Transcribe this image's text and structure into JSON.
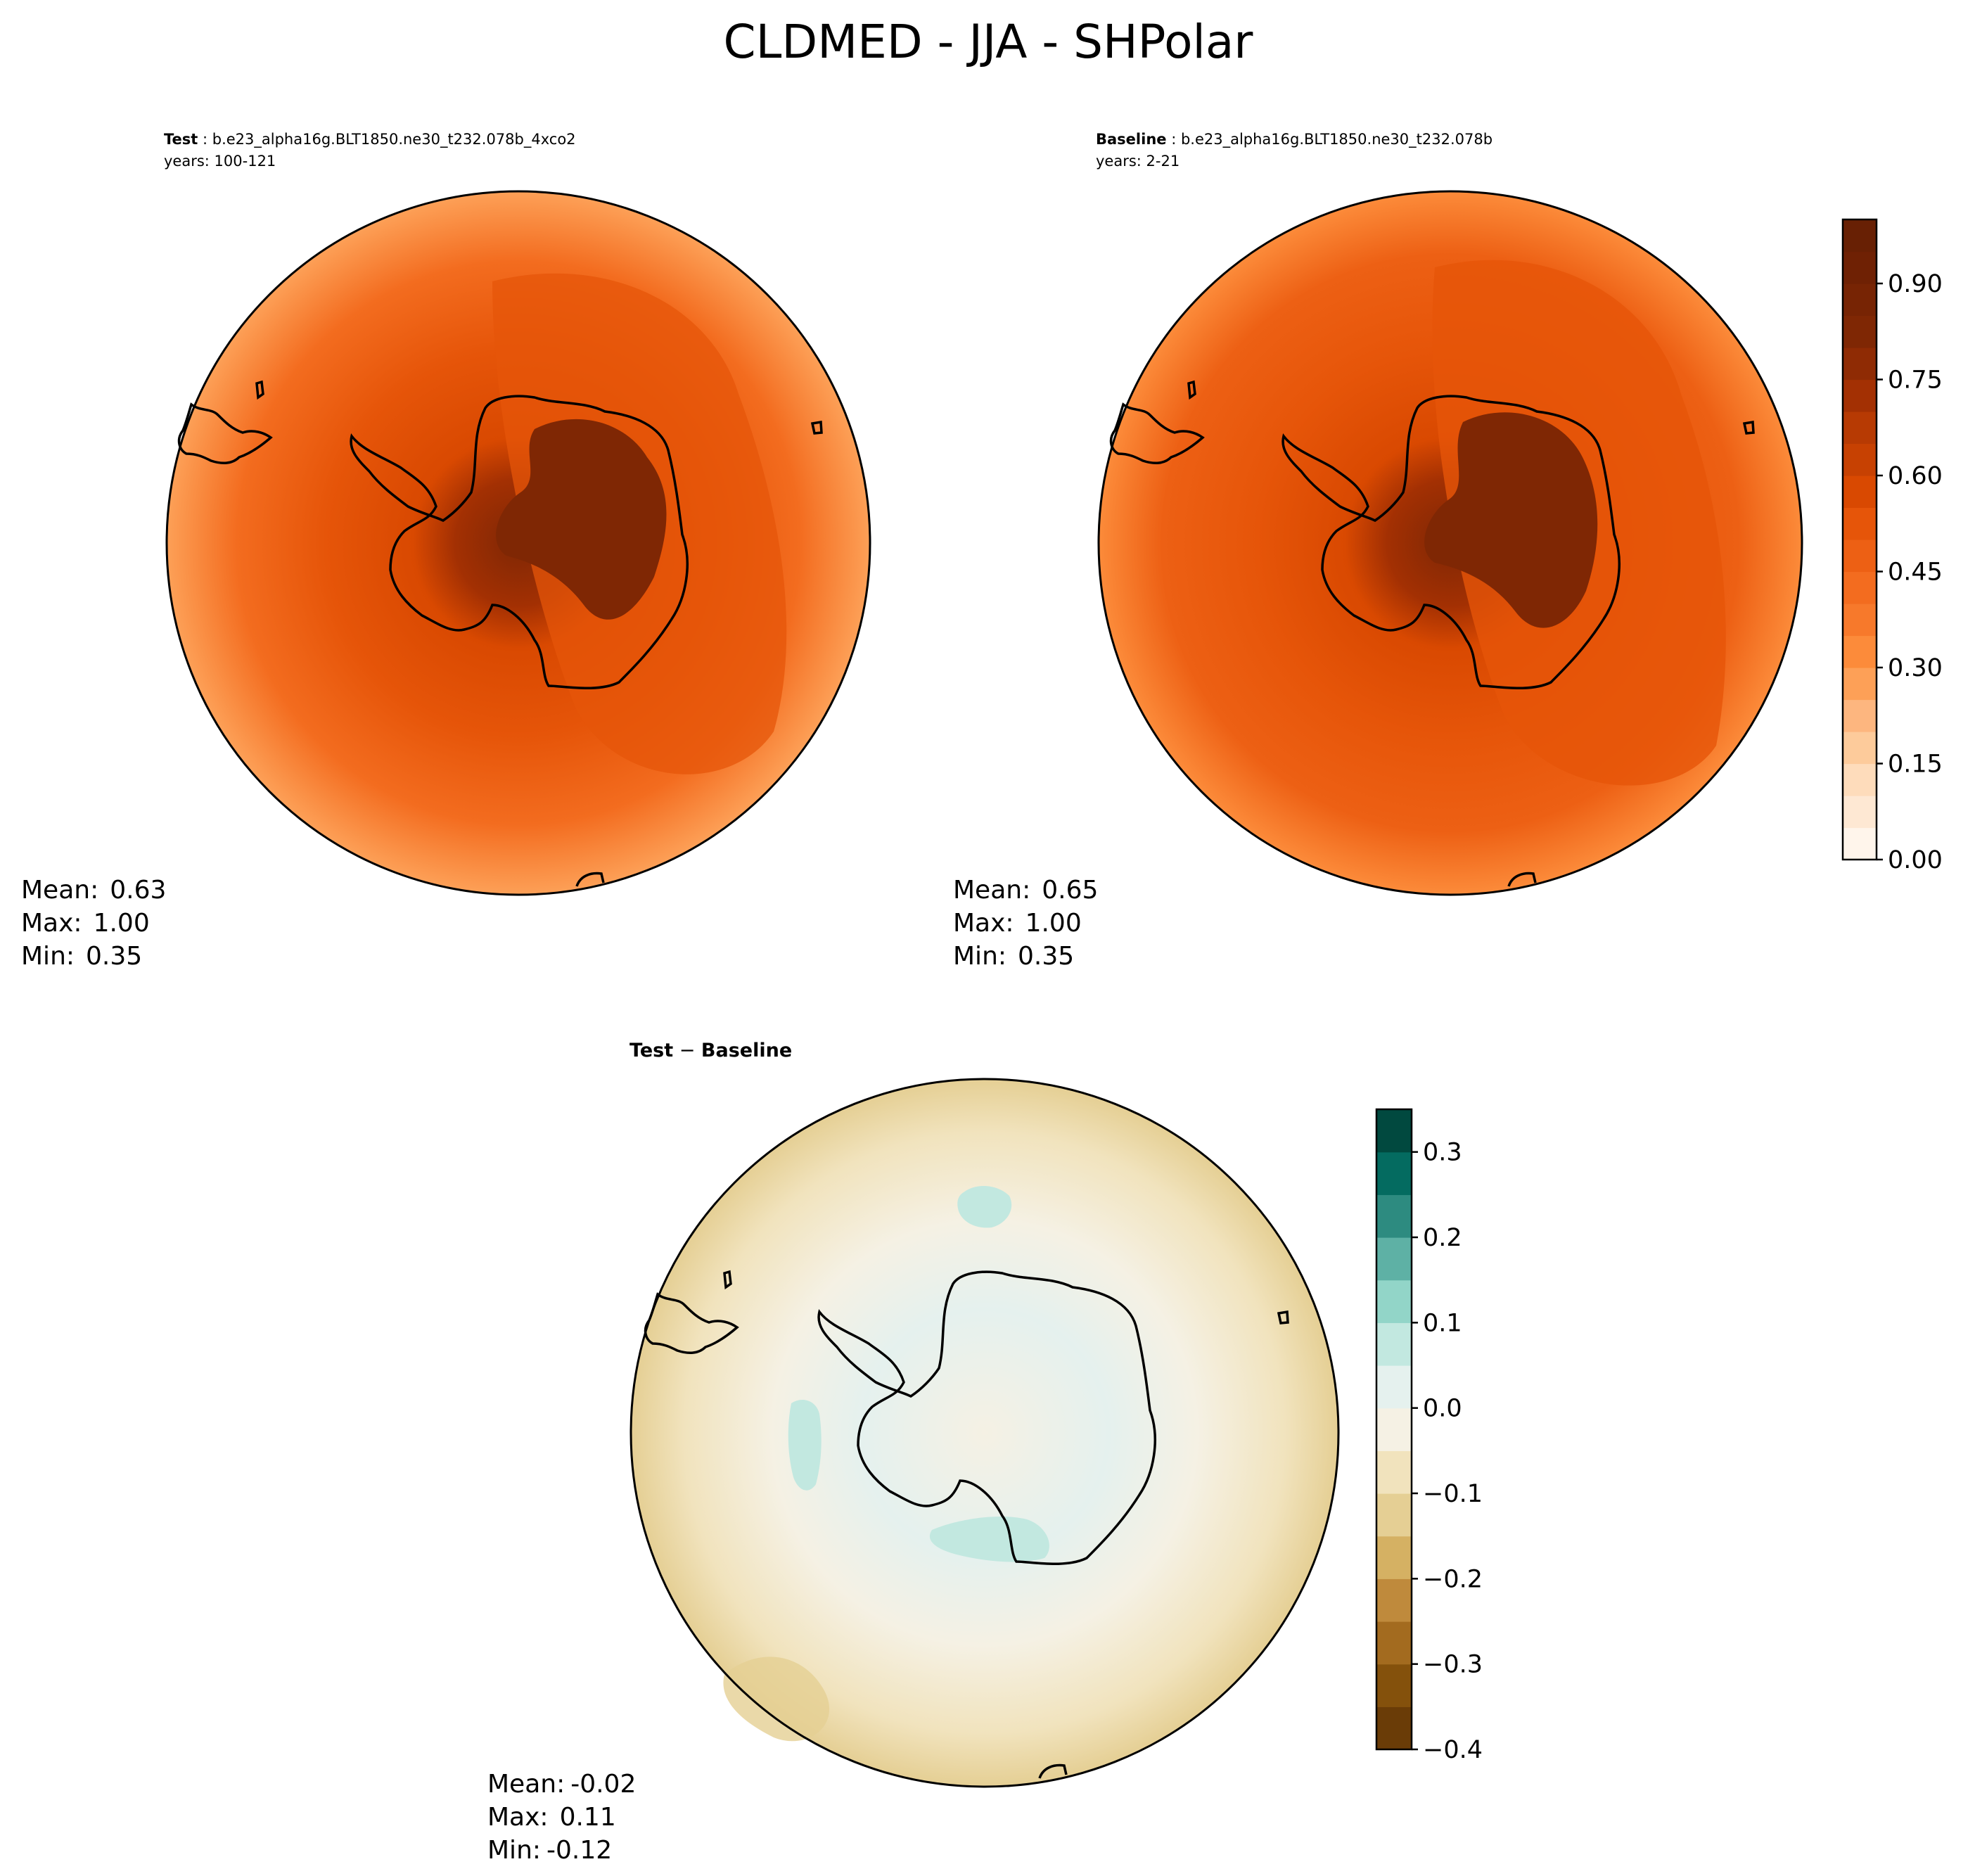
{
  "figure": {
    "title": "CLDMED - JJA - SHPolar"
  },
  "chart_data": [
    {
      "type": "heatmap",
      "projection": "south-polar-stereographic",
      "title_bold": "Test",
      "title_rest": " : b.e23_alpha16g.BLT1850.ne30_t232.078b_4xco2",
      "subtitle": "years: 100-121",
      "stats": {
        "mean_label": "Mean:",
        "mean": "0.63",
        "max_label": "Max:",
        "max": "1.00",
        "min_label": "Min:",
        "min": "0.35"
      },
      "mean": 0.63,
      "max": 1.0,
      "min": 0.35,
      "colormap": "Oranges",
      "colorbar": "shared-right"
    },
    {
      "type": "heatmap",
      "projection": "south-polar-stereographic",
      "title_bold": "Baseline",
      "title_rest": " : b.e23_alpha16g.BLT1850.ne30_t232.078b",
      "subtitle": "years: 2-21",
      "stats": {
        "mean_label": "Mean:",
        "mean": "0.65",
        "max_label": "Max:",
        "max": "1.00",
        "min_label": "Min:",
        "min": "0.35"
      },
      "mean": 0.65,
      "max": 1.0,
      "min": 0.35,
      "colormap": "Oranges",
      "colorbar": {
        "range": [
          0.0,
          1.0
        ],
        "levels": [
          0.0,
          0.05,
          0.1,
          0.15,
          0.2,
          0.25,
          0.3,
          0.35,
          0.4,
          0.45,
          0.5,
          0.55,
          0.6,
          0.65,
          0.7,
          0.75,
          0.8,
          0.85,
          0.9,
          0.95,
          1.0
        ],
        "ticks": [
          0.0,
          0.15,
          0.3,
          0.45,
          0.6,
          0.75,
          0.9
        ],
        "tick_labels": [
          "0.00",
          "0.15",
          "0.30",
          "0.45",
          "0.60",
          "0.75",
          "0.90"
        ],
        "colors": [
          "#fff5eb",
          "#fee8d3",
          "#fedcbb",
          "#fdcb9b",
          "#fdb67f",
          "#fda057",
          "#fc8b3a",
          "#f7792b",
          "#f36c1f",
          "#ed6014",
          "#e65509",
          "#d94901",
          "#c74102",
          "#b73a03",
          "#a33003",
          "#8f2b04",
          "#7f2704",
          "#772404",
          "#6f2104",
          "#682004"
        ]
      }
    },
    {
      "type": "heatmap",
      "projection": "south-polar-stereographic",
      "title_bold": "Test",
      "title_rest": " − ",
      "title_bold2": "Baseline",
      "stats": {
        "mean_label": "Mean:",
        "mean": "-0.02",
        "max_label": "Max:",
        "max": "0.11",
        "min_label": "Min:",
        "min": "-0.12"
      },
      "mean": -0.02,
      "max": 0.11,
      "min": -0.12,
      "colormap": "BrBG",
      "colorbar": {
        "range": [
          -0.4,
          0.35
        ],
        "levels": [
          -0.4,
          -0.35,
          -0.3,
          -0.25,
          -0.2,
          -0.15,
          -0.1,
          -0.05,
          0.0,
          0.05,
          0.1,
          0.15,
          0.2,
          0.25,
          0.3,
          0.35
        ],
        "ticks": [
          -0.4,
          -0.3,
          -0.2,
          -0.1,
          0.0,
          0.1,
          0.2,
          0.3
        ],
        "tick_labels": [
          "−0.4",
          "−0.3",
          "−0.2",
          "−0.1",
          "0.0",
          "0.1",
          "0.2",
          "0.3"
        ],
        "colors": [
          "#6a3c07",
          "#84510c",
          "#a36b1f",
          "#bf8a3c",
          "#d5b163",
          "#e5cf94",
          "#f1e3bd",
          "#f5f1e4",
          "#e5f1ee",
          "#c2e8e0",
          "#92d5c8",
          "#5eb1a5",
          "#2d8b80",
          "#046b60",
          "#01493f"
        ]
      }
    }
  ]
}
